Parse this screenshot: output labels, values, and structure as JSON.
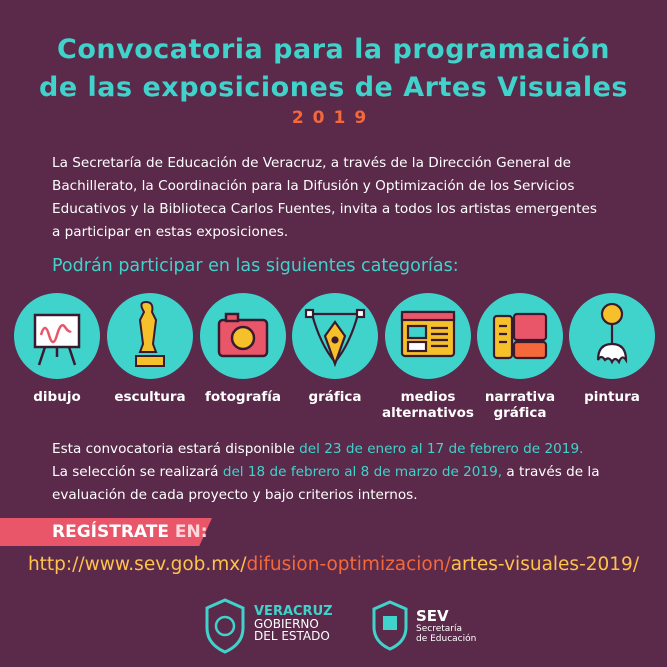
{
  "header": {
    "title_line1": "Convocatoria para la programación",
    "title_line2": "de las exposiciones de Artes Visuales",
    "year": "2019"
  },
  "intro": {
    "lines": [
      "La Secretaría de Educación de Veracruz, a través de la Dirección General de",
      "Bachillerato, la Coordinación para la Difusión y Optimización de los Servicios",
      "Educativos y la Biblioteca Carlos Fuentes, invita a todos los artistas emergentes",
      "a participar en estas exposiciones."
    ]
  },
  "categories_heading": "Podrán participar en las siguientes categorías:",
  "categories": [
    "dibujo",
    "escultura",
    "fotografía",
    "gráfica",
    "medios alternativos",
    "narrativa gráfica",
    "pintura"
  ],
  "availability": {
    "line1": [
      "Esta convocatoria estará disponible",
      "del 23 de enero al 17 de febrero de 2019."
    ],
    "line2": [
      "La selección se realizará",
      "del 18 de febrero al 8 de marzo de 2019,",
      "a través de la"
    ],
    "line3": "evaluación de cada proyecto y bajo criterios internos."
  },
  "register": {
    "label": "REGÍSTRATE",
    "suffix": "EN:"
  },
  "url": [
    "http://www.sev.gob.mx/",
    "difusion-optimizacion/",
    "artes-visuales-2019/"
  ],
  "logos": {
    "gobierno": [
      "VERACRUZ",
      "GOBIERNO",
      "DEL ESTADO"
    ],
    "sev": [
      "SEV",
      "Secretaría",
      "de Educación"
    ]
  }
}
